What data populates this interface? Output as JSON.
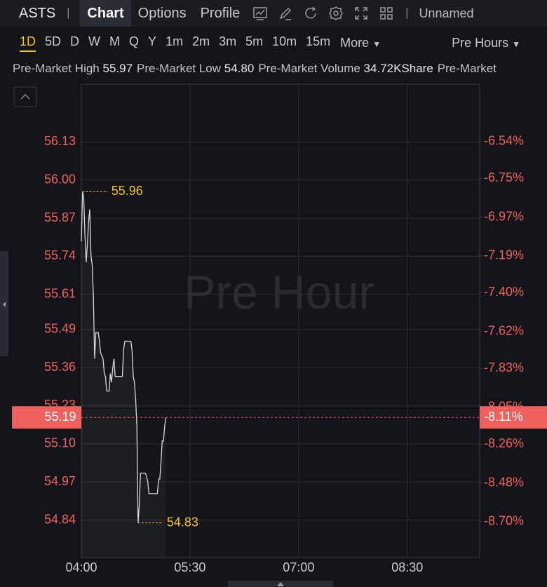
{
  "toolbar": {
    "symbol": "ASTS",
    "tabs": [
      "Chart",
      "Options",
      "Profile"
    ],
    "active_tab": "Chart",
    "layout": "Unnamed"
  },
  "timeframes": {
    "items": [
      "1D",
      "5D",
      "D",
      "W",
      "M",
      "Q",
      "Y",
      "1m",
      "2m",
      "3m",
      "5m",
      "10m",
      "15m"
    ],
    "active": "1D",
    "more": "More",
    "session": "Pre Hours"
  },
  "stats": [
    {
      "label": "Pre-Market High",
      "value": "55.97"
    },
    {
      "label": "Pre-Market Low",
      "value": "54.80"
    },
    {
      "label": "Pre-Market Volume",
      "value": "34.72KShare"
    },
    {
      "label": "Pre-Market"
    }
  ],
  "chart_data": {
    "type": "line",
    "watermark": "Pre Hour",
    "x": [
      "04:00",
      "04:01",
      "04:02",
      "04:03",
      "04:04",
      "04:05",
      "04:06",
      "04:07",
      "04:08",
      "04:09",
      "04:10",
      "04:11",
      "04:12",
      "04:13",
      "04:14",
      "04:15",
      "04:16",
      "04:17",
      "04:18",
      "04:19",
      "04:20",
      "04:21",
      "04:22",
      "04:23",
      "04:24",
      "04:25",
      "04:26",
      "04:27",
      "04:28",
      "04:29",
      "04:30",
      "04:31",
      "04:32",
      "04:33",
      "04:34",
      "04:35",
      "04:36",
      "04:37",
      "04:38",
      "04:39",
      "04:40",
      "04:41",
      "04:42",
      "04:43",
      "04:44",
      "04:45",
      "04:46",
      "04:47",
      "04:48",
      "04:49",
      "04:50",
      "04:51",
      "04:52",
      "04:53",
      "04:54",
      "04:55",
      "04:56",
      "04:57",
      "04:58",
      "04:59",
      "05:00",
      "05:01",
      "05:02",
      "05:03",
      "05:04",
      "05:05",
      "05:06",
      "05:07",
      "05:08",
      "05:09",
      "05:10"
    ],
    "series": [
      {
        "color": "#d9d9d9",
        "values": [
          55.79,
          55.96,
          55.94,
          55.81,
          55.72,
          55.78,
          55.86,
          55.9,
          55.74,
          55.71,
          55.6,
          55.39,
          55.48,
          55.48,
          55.48,
          55.45,
          55.41,
          55.4,
          55.39,
          55.34,
          55.33,
          55.28,
          55.28,
          55.28,
          55.34,
          55.31,
          55.36,
          55.39,
          55.33,
          55.33,
          55.33,
          55.33,
          55.33,
          55.33,
          55.33,
          55.42,
          55.45,
          55.45,
          55.45,
          55.45,
          55.45,
          55.45,
          55.42,
          55.33,
          55.31,
          55.25,
          55.16,
          54.83,
          54.89,
          55.0,
          55.0,
          55.0,
          55.0,
          55.0,
          54.99,
          54.97,
          54.93,
          54.93,
          54.93,
          54.93,
          54.93,
          54.93,
          54.93,
          54.93,
          54.98,
          54.98,
          55.04,
          55.11,
          55.11,
          55.16,
          55.19
        ]
      }
    ],
    "xlim": [
      "04:00",
      "09:30"
    ],
    "xticks": [
      "04:00",
      "05:30",
      "07:00",
      "08:30"
    ],
    "ylim": [
      54.712,
      56.327
    ],
    "yticks": [
      56.13,
      {
        "value": 56,
        "label": "56.00"
      },
      55.87,
      55.74,
      55.61,
      55.49,
      55.36,
      55.23,
      {
        "value": 55.1,
        "label": "55.10"
      },
      54.97,
      54.84
    ],
    "y2lim": [
      -8.904,
      -6.215
    ],
    "y2ticks": [
      {
        "value": -6.54,
        "label": "-6.54%"
      },
      {
        "value": -6.75,
        "label": "-6.75%"
      },
      {
        "value": -6.97,
        "label": "-6.97%"
      },
      {
        "value": -7.19,
        "label": "-7.19%"
      },
      {
        "value": -7.4,
        "label": "-7.40%"
      },
      {
        "value": -7.62,
        "label": "-7.62%"
      },
      {
        "value": -7.83,
        "label": "-7.83%"
      },
      {
        "value": -8.05,
        "label": "-8.05%"
      },
      {
        "value": -8.26,
        "label": "-8.26%"
      },
      {
        "value": -8.48,
        "label": "-8.48%"
      },
      {
        "value": -8.7,
        "label": "-8.70%"
      }
    ],
    "grid": true,
    "annotations": [
      {
        "x": "04:01",
        "value": 55.96
      },
      {
        "x": "04:47",
        "value": 54.83
      }
    ],
    "current": {
      "value": 55.19,
      "percent": {
        "value": -8.11,
        "label": "-8.11%"
      }
    }
  }
}
